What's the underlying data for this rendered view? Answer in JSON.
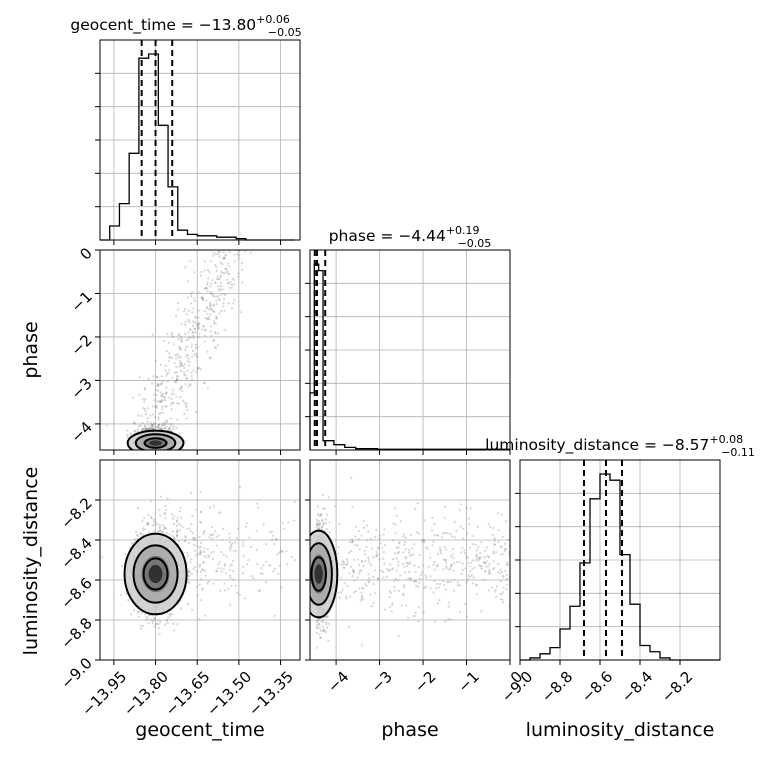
{
  "chart_data": {
    "type": "corner",
    "parameters": [
      {
        "name": "geocent_time",
        "median": -13.8,
        "upper": "+0.06",
        "lower": "−0.05",
        "title": "geocent_time = −13.80",
        "q16": -13.85,
        "q84": -13.74
      },
      {
        "name": "phase",
        "median": -4.44,
        "upper": "+0.19",
        "lower": "−0.05",
        "title": "phase = −4.44",
        "q16": -4.49,
        "q84": -4.25
      },
      {
        "name": "luminosity_distance",
        "median": -8.57,
        "upper": "+0.08",
        "lower": "−0.11",
        "title": "luminosity_distance = −8.57",
        "q16": -8.68,
        "q84": -8.49
      }
    ],
    "axis_labels": {
      "x": [
        "geocent_time",
        "phase",
        "luminosity_distance"
      ],
      "y": [
        "phase",
        "luminosity_distance"
      ]
    },
    "ranges": {
      "geocent_time": [
        -14.0,
        -13.28
      ],
      "phase": [
        -4.6,
        0.0
      ],
      "luminosity_distance": [
        -9.0,
        -8.0
      ]
    },
    "ticks": {
      "geocent_time": {
        "values": [
          -13.95,
          -13.8,
          -13.65,
          -13.5,
          -13.35
        ],
        "labels": [
          "−13.95",
          "−13.80",
          "−13.65",
          "−13.50",
          "−13.35"
        ]
      },
      "phase": {
        "values": [
          -4,
          -3,
          -2,
          -1,
          0
        ],
        "labels": [
          "−4",
          "−3",
          "−2",
          "−1",
          "0"
        ]
      },
      "luminosity_distance": {
        "values": [
          -9.0,
          -8.8,
          -8.6,
          -8.4,
          -8.2
        ],
        "labels": [
          "−9.0",
          "−8.8",
          "−8.6",
          "−8.4",
          "−8.2"
        ]
      }
    },
    "histograms": {
      "geocent_time": {
        "edges": [
          -14.0,
          -13.965,
          -13.93,
          -13.895,
          -13.86,
          -13.825,
          -13.79,
          -13.755,
          -13.72,
          -13.685,
          -13.65,
          -13.615,
          -13.58,
          -13.545,
          -13.51,
          -13.475,
          -13.44,
          -13.405,
          -13.37,
          -13.335,
          -13.3
        ],
        "counts": [
          0.0,
          0.1,
          0.26,
          0.62,
          1.3,
          1.33,
          0.82,
          0.38,
          0.07,
          0.04,
          0.03,
          0.03,
          0.02,
          0.02,
          0.01,
          0.0,
          0.0,
          0.0,
          0.0,
          0.0
        ]
      },
      "phase": {
        "edges": [
          -4.6,
          -4.5,
          -4.4,
          -4.3,
          -4.05,
          -3.8,
          -3.55,
          -3.3,
          -3.05,
          -2.8,
          -2.55,
          -2.3,
          -2.05,
          -1.8,
          -1.55,
          -1.3,
          -1.05,
          -0.8,
          -0.55,
          -0.3,
          0.0
        ],
        "counts": [
          0.43,
          1.4,
          1.35,
          0.07,
          0.04,
          0.02,
          0.01,
          0.01,
          0.005,
          0.005,
          0.005,
          0.005,
          0.005,
          0.005,
          0.005,
          0.005,
          0.005,
          0.005,
          0.005,
          0.005
        ]
      },
      "luminosity_distance": {
        "edges": [
          -9.0,
          -8.95,
          -8.9,
          -8.85,
          -8.8,
          -8.75,
          -8.7,
          -8.65,
          -8.6,
          -8.55,
          -8.5,
          -8.45,
          -8.4,
          -8.35,
          -8.3,
          -8.25,
          -8.2,
          -8.15,
          -8.1,
          -8.05,
          -8.0
        ],
        "counts": [
          0.0,
          0.01,
          0.03,
          0.06,
          0.15,
          0.26,
          0.47,
          0.78,
          0.9,
          0.87,
          0.51,
          0.27,
          0.07,
          0.04,
          0.01,
          0.0,
          0.0,
          0.0,
          0.0,
          0.0
        ]
      }
    },
    "density_centers": {
      "phase_vs_geocent_time": {
        "x": -13.8,
        "y": -4.44
      },
      "luminosity_distance_vs_geocent_time": {
        "x": -13.8,
        "y": -8.57
      },
      "luminosity_distance_vs_phase": {
        "x": -4.4,
        "y": -8.57
      }
    },
    "grid": true,
    "colors": {
      "line": "#000000",
      "points": "#7f7f7f",
      "grid": "#b0b0b0"
    }
  }
}
